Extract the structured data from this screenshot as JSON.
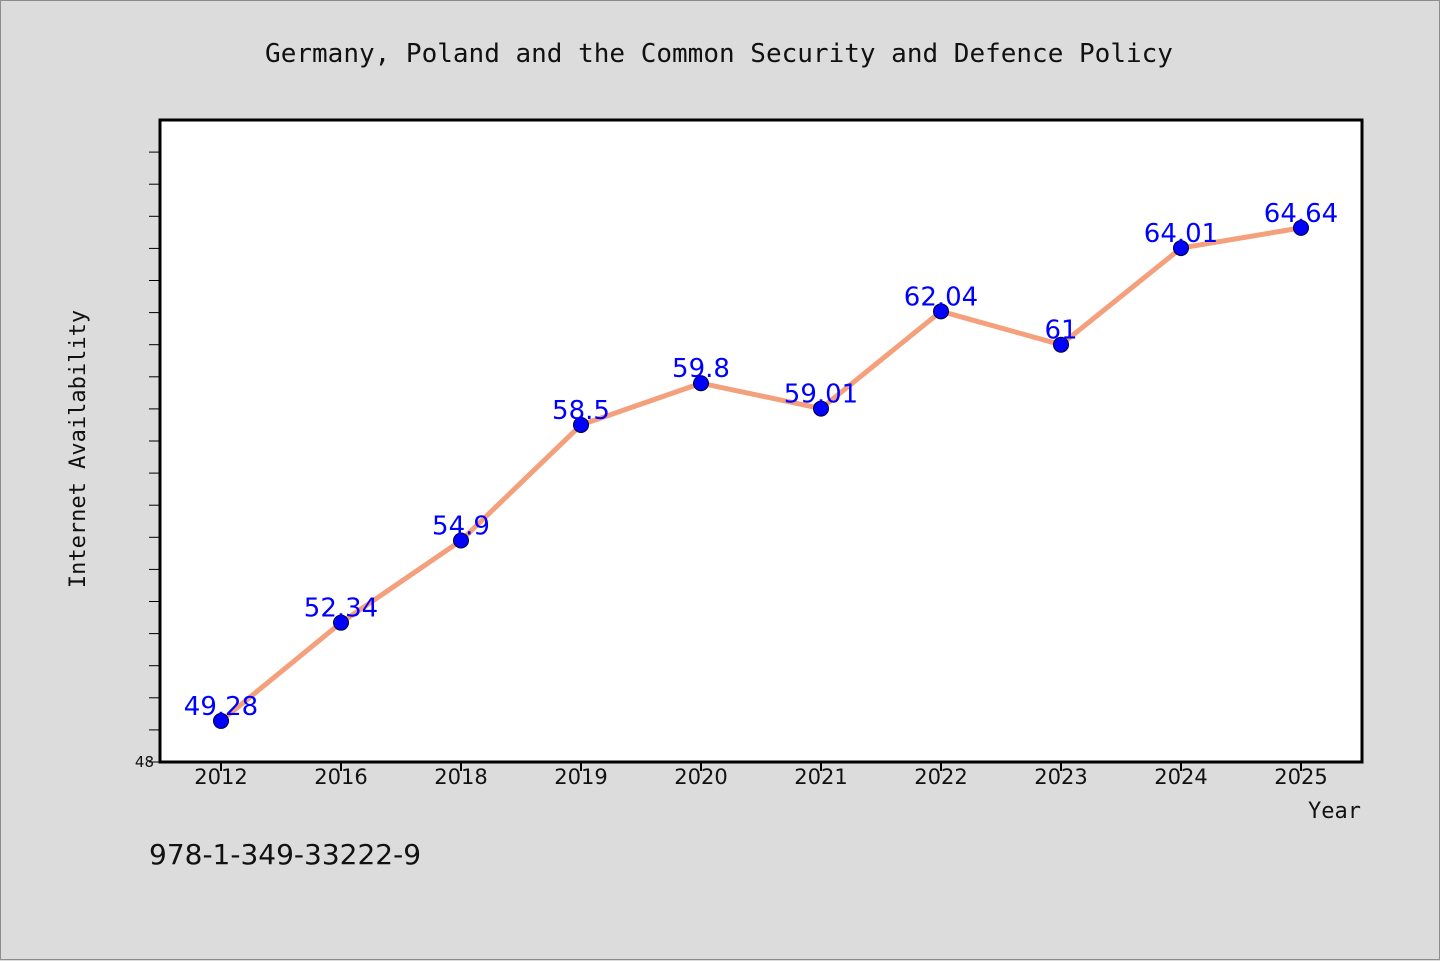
{
  "chart_data": {
    "type": "line",
    "title": "Germany, Poland and the Common Security and Defence Policy",
    "xlabel": "Year",
    "ylabel": "Internet Availability",
    "categories": [
      "2012",
      "2016",
      "2018",
      "2019",
      "2020",
      "2021",
      "2022",
      "2023",
      "2024",
      "2025"
    ],
    "series": [
      {
        "values": [
          49.28,
          52.34,
          54.9,
          58.5,
          59.8,
          59.01,
          62.04,
          61,
          64.01,
          64.64
        ],
        "data_labels": [
          "49.28",
          "52.34",
          "54.9",
          "58.5",
          "59.8",
          "59.01",
          "62.04",
          "61",
          "64.01",
          "64.64"
        ],
        "line_color": "#f4a07c",
        "marker_color": "#0000ff"
      }
    ],
    "ylim": [
      48,
      68
    ],
    "y_tick_labels": [
      "48"
    ],
    "y_minor_tick_step": 1,
    "grid": false,
    "legend": "none",
    "background_color": "#dcdcdc",
    "plot_background_color": "#ffffff",
    "data_label_color": "#0000ff"
  },
  "footnote": "978-1-349-33222-9"
}
